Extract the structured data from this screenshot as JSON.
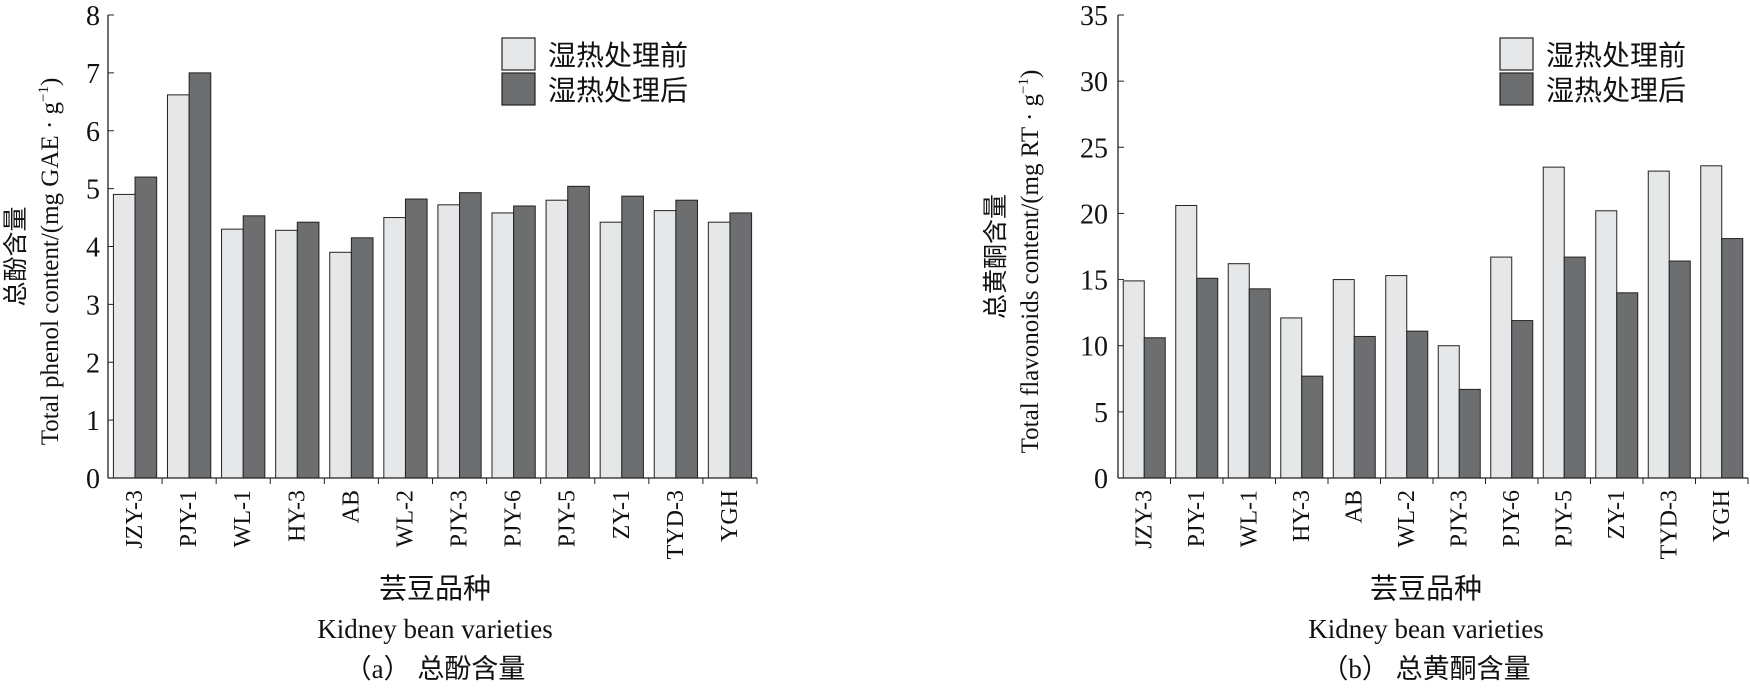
{
  "chart_data": [
    {
      "type": "bar",
      "caption": "（a） 总酚含量",
      "xlabel_cn": "芸豆品种",
      "xlabel_en": "Kidney bean varieties",
      "ylabel_cn": "总酚含量",
      "ylabel_en": "Total phenol content/(mg GAE · g",
      "ylabel_sup": "−1",
      "ylabel_close": ")",
      "ylim": [
        0,
        8
      ],
      "yticks": [
        "0",
        "1",
        "2",
        "3",
        "4",
        "5",
        "6",
        "7",
        "8"
      ],
      "legend_position": "top-right",
      "categories": [
        "JZY-3",
        "PJY-1",
        "WL-1",
        "HY-3",
        "AB",
        "WL-2",
        "PJY-3",
        "PJY-6",
        "PJY-5",
        "ZY-1",
        "TYD-3",
        "YGH"
      ],
      "series": [
        {
          "name": "湿热处理前",
          "color": "#e6e7e8",
          "values": [
            4.9,
            6.62,
            4.3,
            4.28,
            3.9,
            4.5,
            4.72,
            4.58,
            4.8,
            4.42,
            4.62,
            4.42
          ]
        },
        {
          "name": "湿热处理后",
          "color": "#6d6e70",
          "values": [
            5.2,
            7.0,
            4.53,
            4.42,
            4.15,
            4.82,
            4.93,
            4.7,
            5.04,
            4.87,
            4.8,
            4.58
          ]
        }
      ]
    },
    {
      "type": "bar",
      "caption": "（b） 总黄酮含量",
      "xlabel_cn": "芸豆品种",
      "xlabel_en": "Kidney bean varieties",
      "ylabel_cn": "总黄酮含量",
      "ylabel_en": "Total flavonoids content/(mg RT · g",
      "ylabel_sup": "−1",
      "ylabel_close": ")",
      "ylim": [
        0,
        35
      ],
      "yticks": [
        "0",
        "5",
        "10",
        "15",
        "20",
        "25",
        "30",
        "35"
      ],
      "legend_position": "top-right",
      "categories": [
        "JZY-3",
        "PJY-1",
        "WL-1",
        "HY-3",
        "AB",
        "WL-2",
        "PJY-3",
        "PJY-6",
        "PJY-5",
        "ZY-1",
        "TYD-3",
        "YGH"
      ],
      "series": [
        {
          "name": "湿热处理前",
          "color": "#e6e7e8",
          "values": [
            14.9,
            20.6,
            16.2,
            12.1,
            15.0,
            15.3,
            10.0,
            16.7,
            23.5,
            20.2,
            23.2,
            23.6
          ]
        },
        {
          "name": "湿热处理后",
          "color": "#6d6e70",
          "values": [
            10.6,
            15.1,
            14.3,
            7.7,
            10.7,
            11.1,
            6.7,
            11.9,
            16.7,
            14.0,
            16.4,
            18.1
          ]
        }
      ]
    }
  ]
}
